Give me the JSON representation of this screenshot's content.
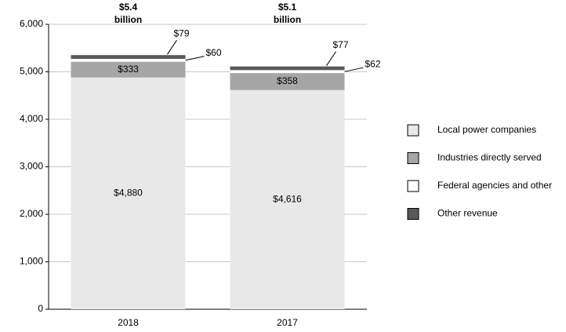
{
  "chart_data": {
    "type": "stacked_bar",
    "categories": [
      "2018",
      "2017"
    ],
    "series": [
      {
        "name": "Local power companies",
        "color": "#e8e8e8",
        "values": [
          4880,
          4616
        ],
        "value_labels": [
          "$4,880",
          "$4,616"
        ]
      },
      {
        "name": "Industries directly served",
        "color": "#a6a6a6",
        "values": [
          333,
          358
        ],
        "value_labels": [
          "$333",
          "$358"
        ]
      },
      {
        "name": "Federal agencies and other",
        "color": "#ffffff",
        "values": [
          60,
          62
        ],
        "value_labels": [
          "$60",
          "$62"
        ]
      },
      {
        "name": "Other revenue",
        "color": "#595959",
        "values": [
          79,
          77
        ],
        "value_labels": [
          "$79",
          "$77"
        ]
      }
    ],
    "annotations": [
      {
        "lines": [
          "$5.4",
          "billion"
        ]
      },
      {
        "lines": [
          "$5.1",
          "billion"
        ]
      }
    ],
    "ylim": [
      0,
      6000
    ],
    "yticks": [
      0,
      {
        "value": 1000,
        "label": "1,000"
      },
      {
        "value": 2000,
        "label": "2,000"
      },
      {
        "value": 3000,
        "label": "3,000"
      },
      {
        "value": 4000,
        "label": "4,000"
      },
      {
        "value": 5000,
        "label": "5,000"
      },
      {
        "value": 6000,
        "label": "6,000"
      }
    ],
    "grid": true,
    "legend": "right"
  }
}
